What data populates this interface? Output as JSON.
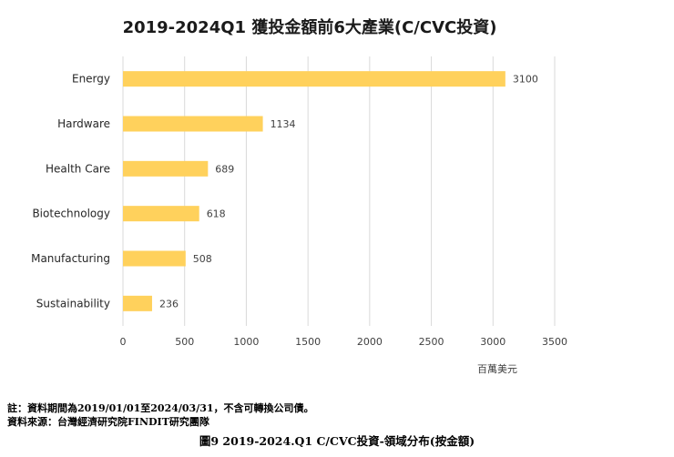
{
  "chart_data": {
    "type": "bar",
    "orientation": "horizontal",
    "title": "2019-2024Q1 獲投金額前6大產業(C/CVC投資)",
    "categories": [
      "Energy",
      "Hardware",
      "Health Care",
      "Biotechnology",
      "Manufacturing",
      "Sustainability"
    ],
    "values": [
      3100,
      1134,
      689,
      618,
      508,
      236
    ],
    "value_labels": [
      "3100",
      "1134",
      "689",
      "618",
      "508",
      "236"
    ],
    "xlim": [
      0,
      3500
    ],
    "xticks": [
      "0",
      "500",
      "1000",
      "1500",
      "2000",
      "2500",
      "3000",
      "3500"
    ],
    "xlabel": "百萬美元",
    "grid": "vertical",
    "bar_color": "#FFD15C"
  },
  "notes": {
    "line1": "註：資料期間為2019/01/01至2024/03/31，不含可轉換公司債。",
    "line2": "資料來源：台灣經濟研究院FINDIT研究團隊"
  },
  "caption": "圖9  2019-2024.Q1 C/CVC投資-領域分布(按金額)"
}
